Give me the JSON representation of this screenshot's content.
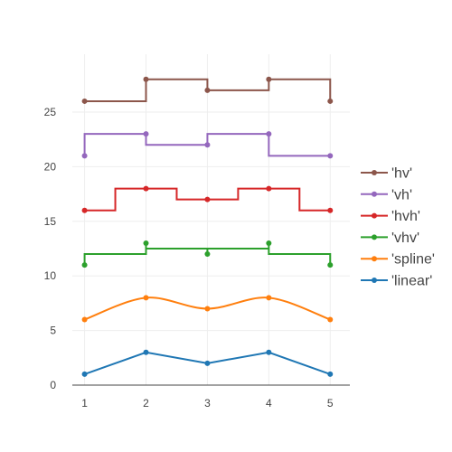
{
  "chart_data": {
    "type": "line",
    "x": [
      1,
      2,
      3,
      4,
      5
    ],
    "xlim": [
      0.8,
      5.32
    ],
    "ylim": [
      0,
      30.3
    ],
    "xticks": [
      1,
      2,
      3,
      4,
      5
    ],
    "yticks": [
      0,
      5,
      10,
      15,
      20,
      25
    ],
    "grid": true,
    "legend_position": "right",
    "series": [
      {
        "name": "'linear'",
        "shape": "linear",
        "color": "#1f77b4",
        "values": [
          1,
          3,
          2,
          3,
          1
        ]
      },
      {
        "name": "'spline'",
        "shape": "spline",
        "color": "#ff7f0e",
        "values": [
          6,
          8,
          7,
          8,
          6
        ]
      },
      {
        "name": "'vhv'",
        "shape": "vhv",
        "color": "#2ca02c",
        "values": [
          11,
          13,
          12,
          13,
          11
        ]
      },
      {
        "name": "'hvh'",
        "shape": "hvh",
        "color": "#d62728",
        "values": [
          16,
          18,
          17,
          18,
          16
        ]
      },
      {
        "name": "'vh'",
        "shape": "vh",
        "color": "#9467bd",
        "values": [
          21,
          23,
          22,
          23,
          21
        ]
      },
      {
        "name": "'hv'",
        "shape": "hv",
        "color": "#8c564b",
        "values": [
          26,
          28,
          27,
          28,
          26
        ]
      }
    ]
  }
}
